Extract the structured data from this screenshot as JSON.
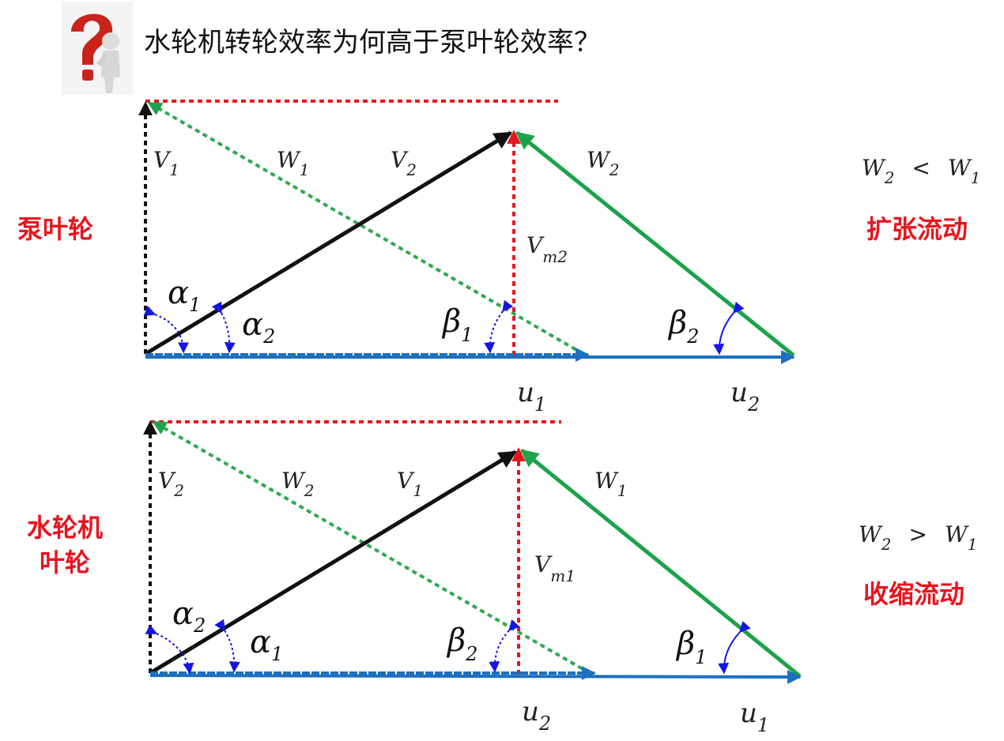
{
  "title": "水轮机转轮效率为何高于泵叶轮效率？",
  "pump": {
    "label": "泵叶轮",
    "V_a": "V",
    "V_a_sub": "1",
    "W_a": "W",
    "W_a_sub": "1",
    "V_b": "V",
    "V_b_sub": "2",
    "W_b": "W",
    "W_b_sub": "2",
    "Vm": "V",
    "Vm_sub": "m2",
    "alpha_a": "α",
    "alpha_a_sub": "1",
    "alpha_b": "α",
    "alpha_b_sub": "2",
    "beta_a": "β",
    "beta_a_sub": "1",
    "beta_b": "β",
    "beta_b_sub": "2",
    "u_a": "u",
    "u_a_sub": "1",
    "u_b": "u",
    "u_b_sub": "2",
    "rel_left": "W",
    "rel_left_sub": "2",
    "rel_op": "<",
    "rel_right": "W",
    "rel_right_sub": "1",
    "flow": "扩张流动"
  },
  "turbine": {
    "label_line1": "水轮机",
    "label_line2": "叶轮",
    "V_a": "V",
    "V_a_sub": "2",
    "W_a": "W",
    "W_a_sub": "2",
    "V_b": "V",
    "V_b_sub": "1",
    "W_b": "W",
    "W_b_sub": "1",
    "Vm": "V",
    "Vm_sub": "m1",
    "alpha_a": "α",
    "alpha_a_sub": "2",
    "alpha_b": "α",
    "alpha_b_sub": "1",
    "beta_a": "β",
    "beta_a_sub": "2",
    "beta_b": "β",
    "beta_b_sub": "1",
    "u_a": "u",
    "u_a_sub": "2",
    "u_b": "u",
    "u_b_sub": "1",
    "rel_left": "W",
    "rel_left_sub": "2",
    "rel_op": ">",
    "rel_right": "W",
    "rel_right_sub": "1",
    "flow": "收缩流动"
  },
  "colors": {
    "black": "#111111",
    "green": "#1ca34a",
    "green_dotted": "#2fa84f",
    "red": "#e8141e",
    "blue": "#1e6fc0",
    "arc": "#1414e6"
  }
}
